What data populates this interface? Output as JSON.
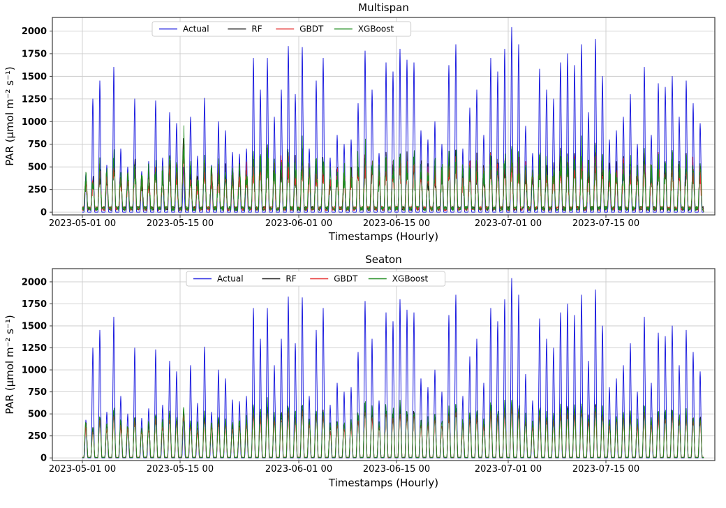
{
  "figure": {
    "background": "#ffffff",
    "grid_color": "#cccccc",
    "spine_color": "#3a3a3a",
    "legend_border_color": "#cccccc"
  },
  "chart_data": [
    {
      "type": "line",
      "title": "Multispan",
      "xlabel": "Timestamps (Hourly)",
      "ylabel": "PAR (μmol m⁻² s⁻¹)",
      "x_start_date": "2023-05-01 00",
      "x_resolution": "hourly",
      "days": 89,
      "ylim": [
        -30,
        2150
      ],
      "yticks": [
        0,
        250,
        500,
        750,
        1000,
        1250,
        1500,
        1750,
        2000
      ],
      "xlim_days": [
        -4.3,
        90.6
      ],
      "xticks": [
        {
          "day": 0,
          "label": "2023-05-01 00"
        },
        {
          "day": 14,
          "label": "2023-05-15 00"
        },
        {
          "day": 31,
          "label": "2023-06-01 00"
        },
        {
          "day": 45,
          "label": "2023-06-15 00"
        },
        {
          "day": 61,
          "label": "2023-07-01 00"
        },
        {
          "day": 75,
          "label": "2023-07-15 00"
        }
      ],
      "grid": true,
      "legend": {
        "location": "upper center inside",
        "entries": [
          "Actual",
          "RF",
          "GBDT",
          "XGBoost"
        ]
      },
      "model_noise": 0.5,
      "model_night_base": 55,
      "series": [
        {
          "name": "Actual",
          "color": "#2222e0",
          "kind": "actual",
          "seed": 11,
          "daily_peaks": [
            430,
            1250,
            1450,
            520,
            1600,
            700,
            500,
            1250,
            450,
            560,
            1230,
            600,
            1100,
            980,
            500,
            1050,
            620,
            1260,
            520,
            1000,
            900,
            660,
            640,
            700,
            1700,
            1350,
            1700,
            1050,
            1350,
            1830,
            1300,
            1820,
            700,
            1450,
            1700,
            600,
            850,
            750,
            800,
            1200,
            1780,
            1350,
            650,
            1650,
            1550,
            1800,
            1680,
            1650,
            900,
            800,
            1000,
            750,
            1620,
            1850,
            700,
            1150,
            1350,
            850,
            1700,
            1550,
            1800,
            2040,
            1850,
            950,
            650,
            1580,
            1350,
            1250,
            1650,
            1750,
            1620,
            1850,
            1100,
            1910,
            1500,
            800,
            900,
            1050,
            1300,
            750,
            1600,
            850,
            1420,
            1380,
            1500,
            1050,
            1450,
            1200,
            980
          ]
        },
        {
          "name": "RF",
          "color": "#1a1a1a",
          "kind": "model",
          "seed": 22,
          "daily_peaks": [
            420,
            380,
            560,
            430,
            640,
            470,
            420,
            560,
            390,
            450,
            580,
            500,
            630,
            560,
            900,
            500,
            430,
            590,
            470,
            540,
            500,
            450,
            490,
            520,
            680,
            610,
            740,
            580,
            630,
            690,
            590,
            720,
            500,
            630,
            650,
            430,
            500,
            470,
            500,
            580,
            700,
            630,
            470,
            670,
            630,
            690,
            650,
            630,
            520,
            490,
            560,
            500,
            630,
            700,
            470,
            580,
            630,
            500,
            690,
            630,
            700,
            740,
            690,
            540,
            470,
            650,
            580,
            560,
            670,
            690,
            650,
            700,
            560,
            720,
            630,
            500,
            540,
            580,
            610,
            490,
            670,
            520,
            630,
            610,
            650,
            560,
            610,
            580,
            540
          ]
        },
        {
          "name": "GBDT",
          "color": "#e62e2e",
          "kind": "model",
          "seed": 33,
          "daily_peaks": [
            390,
            360,
            520,
            400,
            600,
            440,
            390,
            520,
            360,
            420,
            540,
            470,
            590,
            520,
            840,
            470,
            400,
            550,
            440,
            500,
            470,
            420,
            460,
            480,
            630,
            570,
            690,
            540,
            590,
            640,
            550,
            670,
            470,
            590,
            610,
            400,
            470,
            440,
            470,
            540,
            650,
            590,
            440,
            620,
            590,
            640,
            610,
            590,
            480,
            460,
            520,
            470,
            590,
            650,
            440,
            540,
            590,
            470,
            640,
            590,
            650,
            690,
            640,
            500,
            440,
            610,
            540,
            520,
            620,
            640,
            610,
            650,
            520,
            670,
            590,
            470,
            500,
            540,
            570,
            460,
            620,
            480,
            590,
            570,
            610,
            520,
            570,
            540,
            500
          ]
        },
        {
          "name": "XGBoost",
          "color": "#1f8b1f",
          "kind": "model",
          "seed": 44,
          "daily_peaks": [
            450,
            410,
            600,
            460,
            690,
            510,
            450,
            600,
            420,
            490,
            630,
            540,
            680,
            600,
            1080,
            540,
            460,
            640,
            510,
            580,
            540,
            490,
            530,
            560,
            730,
            660,
            800,
            630,
            680,
            740,
            640,
            780,
            540,
            680,
            700,
            460,
            540,
            510,
            540,
            630,
            760,
            680,
            510,
            720,
            680,
            740,
            700,
            680,
            560,
            530,
            600,
            540,
            680,
            760,
            510,
            630,
            680,
            540,
            740,
            680,
            760,
            800,
            740,
            580,
            510,
            700,
            630,
            600,
            720,
            740,
            700,
            760,
            600,
            780,
            680,
            540,
            580,
            630,
            660,
            530,
            720,
            560,
            680,
            660,
            700,
            600,
            660,
            630,
            580
          ]
        }
      ]
    },
    {
      "type": "line",
      "title": "Seaton",
      "xlabel": "Timestamps (Hourly)",
      "ylabel": "PAR (μmol m⁻² s⁻¹)",
      "x_start_date": "2023-05-01 00",
      "x_resolution": "hourly",
      "days": 89,
      "ylim": [
        -30,
        2150
      ],
      "yticks": [
        0,
        250,
        500,
        750,
        1000,
        1250,
        1500,
        1750,
        2000
      ],
      "xlim_days": [
        -4.3,
        90.6
      ],
      "xticks": [
        {
          "day": 0,
          "label": "2023-05-01 00"
        },
        {
          "day": 14,
          "label": "2023-05-15 00"
        },
        {
          "day": 31,
          "label": "2023-06-01 00"
        },
        {
          "day": 45,
          "label": "2023-06-15 00"
        },
        {
          "day": 61,
          "label": "2023-07-01 00"
        },
        {
          "day": 75,
          "label": "2023-07-15 00"
        }
      ],
      "grid": true,
      "legend": {
        "location": "upper center inside",
        "entries": [
          "Actual",
          "RF",
          "GBDT",
          "XGBoost"
        ]
      },
      "model_noise": 0.2,
      "model_night_base": 8,
      "series": [
        {
          "name": "Actual",
          "color": "#2222e0",
          "kind": "actual",
          "seed": 55,
          "daily_peaks": [
            430,
            1250,
            1450,
            520,
            1600,
            700,
            500,
            1250,
            450,
            560,
            1230,
            600,
            1100,
            980,
            500,
            1050,
            620,
            1260,
            520,
            1000,
            900,
            660,
            640,
            700,
            1700,
            1350,
            1700,
            1050,
            1350,
            1830,
            1300,
            1820,
            700,
            1450,
            1700,
            600,
            850,
            750,
            800,
            1200,
            1780,
            1350,
            650,
            1650,
            1550,
            1800,
            1680,
            1650,
            900,
            800,
            1000,
            750,
            1620,
            1850,
            700,
            1150,
            1350,
            850,
            1700,
            1550,
            1800,
            2040,
            1850,
            950,
            650,
            1580,
            1350,
            1250,
            1650,
            1750,
            1620,
            1850,
            1100,
            1910,
            1500,
            800,
            900,
            1050,
            1300,
            750,
            1600,
            850,
            1420,
            1380,
            1500,
            1050,
            1450,
            1200,
            980
          ]
        },
        {
          "name": "RF",
          "color": "#1a1a1a",
          "kind": "model",
          "seed": 66,
          "daily_peaks": [
            400,
            340,
            480,
            380,
            560,
            420,
            380,
            490,
            340,
            400,
            500,
            430,
            540,
            480,
            560,
            430,
            370,
            500,
            400,
            460,
            430,
            390,
            420,
            450,
            590,
            530,
            640,
            500,
            550,
            600,
            510,
            630,
            430,
            550,
            570,
            370,
            430,
            410,
            430,
            500,
            610,
            550,
            410,
            580,
            550,
            600,
            570,
            550,
            450,
            430,
            490,
            430,
            550,
            610,
            410,
            500,
            550,
            430,
            600,
            550,
            610,
            650,
            600,
            470,
            410,
            570,
            500,
            490,
            580,
            600,
            570,
            610,
            490,
            630,
            550,
            430,
            470,
            500,
            530,
            430,
            580,
            450,
            550,
            530,
            570,
            490,
            530,
            500,
            470
          ]
        },
        {
          "name": "GBDT",
          "color": "#e62e2e",
          "kind": "model",
          "seed": 77,
          "daily_peaks": [
            370,
            320,
            450,
            350,
            520,
            390,
            350,
            460,
            320,
            370,
            470,
            400,
            500,
            450,
            520,
            400,
            340,
            470,
            370,
            430,
            400,
            360,
            390,
            420,
            550,
            490,
            600,
            470,
            510,
            560,
            470,
            590,
            400,
            510,
            530,
            340,
            400,
            380,
            400,
            470,
            570,
            510,
            380,
            540,
            510,
            560,
            530,
            510,
            420,
            400,
            460,
            400,
            510,
            570,
            380,
            470,
            510,
            400,
            560,
            510,
            570,
            600,
            560,
            440,
            380,
            530,
            470,
            460,
            540,
            560,
            530,
            570,
            460,
            590,
            510,
            400,
            440,
            470,
            490,
            400,
            540,
            420,
            510,
            490,
            530,
            460,
            490,
            460,
            440
          ]
        },
        {
          "name": "XGBoost",
          "color": "#1f8b1f",
          "kind": "model",
          "seed": 88,
          "daily_peaks": [
            430,
            360,
            510,
            410,
            600,
            450,
            410,
            520,
            360,
            430,
            540,
            460,
            580,
            510,
            600,
            460,
            400,
            540,
            430,
            490,
            460,
            420,
            450,
            480,
            630,
            570,
            680,
            540,
            590,
            640,
            550,
            670,
            460,
            590,
            610,
            400,
            460,
            440,
            460,
            540,
            650,
            590,
            440,
            620,
            590,
            640,
            610,
            590,
            480,
            460,
            520,
            460,
            590,
            650,
            440,
            540,
            590,
            460,
            640,
            590,
            650,
            700,
            640,
            500,
            440,
            610,
            540,
            520,
            620,
            640,
            610,
            650,
            520,
            670,
            590,
            460,
            500,
            540,
            570,
            460,
            620,
            480,
            590,
            570,
            610,
            520,
            570,
            540,
            500
          ]
        }
      ]
    }
  ]
}
